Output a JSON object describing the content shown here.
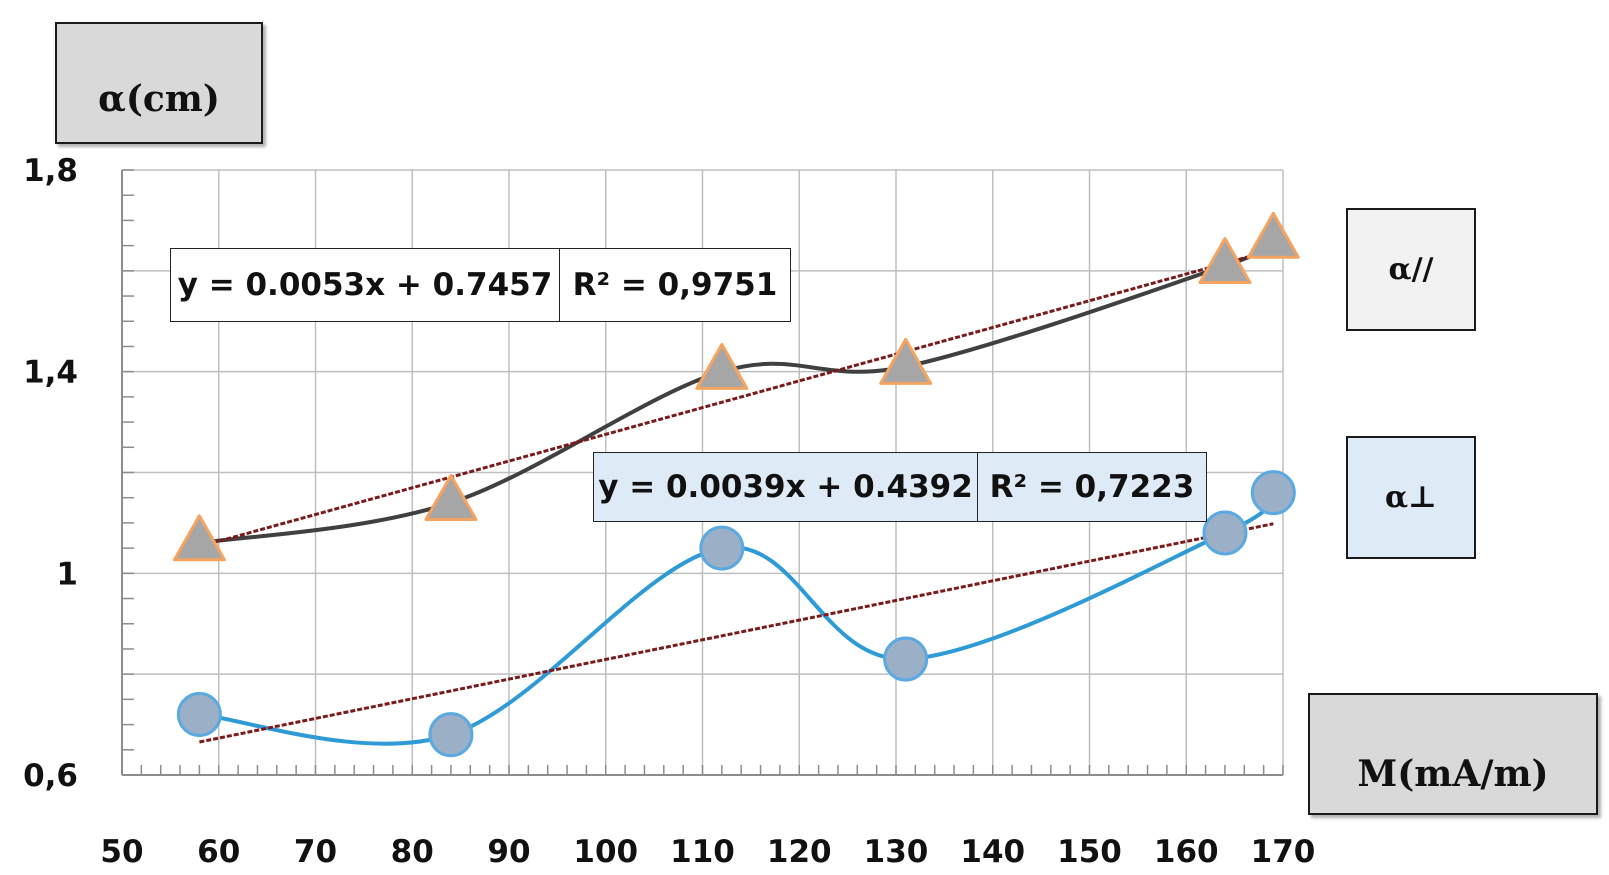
{
  "chart_data": {
    "type": "scatter",
    "title": "",
    "xlabel": "M(mA/m)",
    "ylabel": "α(cm)",
    "xlim": [
      50,
      170
    ],
    "ylim": [
      0.6,
      1.8
    ],
    "x_ticks": [
      "50",
      "60",
      "70",
      "80",
      "90",
      "100",
      "110",
      "120",
      "130",
      "140",
      "150",
      "160",
      "170"
    ],
    "y_ticks": [
      "0,6",
      "1",
      "1,4",
      "1,8"
    ],
    "grid": true,
    "legend_position": "right",
    "series": [
      {
        "name": "α//",
        "marker": "triangle",
        "line": "smooth",
        "line_color": "#404040",
        "marker_fill": "#a6a6a6",
        "marker_edge": "#f4a460",
        "x": [
          58,
          84,
          112,
          131,
          164,
          169
        ],
        "y": [
          1.06,
          1.14,
          1.4,
          1.41,
          1.61,
          1.66
        ],
        "trendline": {
          "slope": 0.0053,
          "intercept": 0.7457,
          "equation": "y = 0.0053x + 0.7457",
          "r2": "R² = 0,9751",
          "color": "#7b1a1a"
        }
      },
      {
        "name": "α⊥",
        "marker": "circle",
        "line": "smooth",
        "line_color": "#2e9bd6",
        "marker_fill": "#9bafc6",
        "marker_edge": "#5aa9e0",
        "x": [
          58,
          84,
          112,
          131,
          164,
          169
        ],
        "y": [
          0.72,
          0.68,
          1.05,
          0.83,
          1.08,
          1.16
        ],
        "trendline": {
          "slope": 0.0039,
          "intercept": 0.4392,
          "equation": "y = 0.0039x + 0.4392",
          "r2": "R² = 0,7223",
          "color": "#7b1a1a"
        }
      }
    ]
  },
  "legend": {
    "item1": "α//",
    "item2": "α⊥"
  },
  "axis_titles": {
    "y": "α(cm)",
    "x": "M(mA/m)"
  }
}
